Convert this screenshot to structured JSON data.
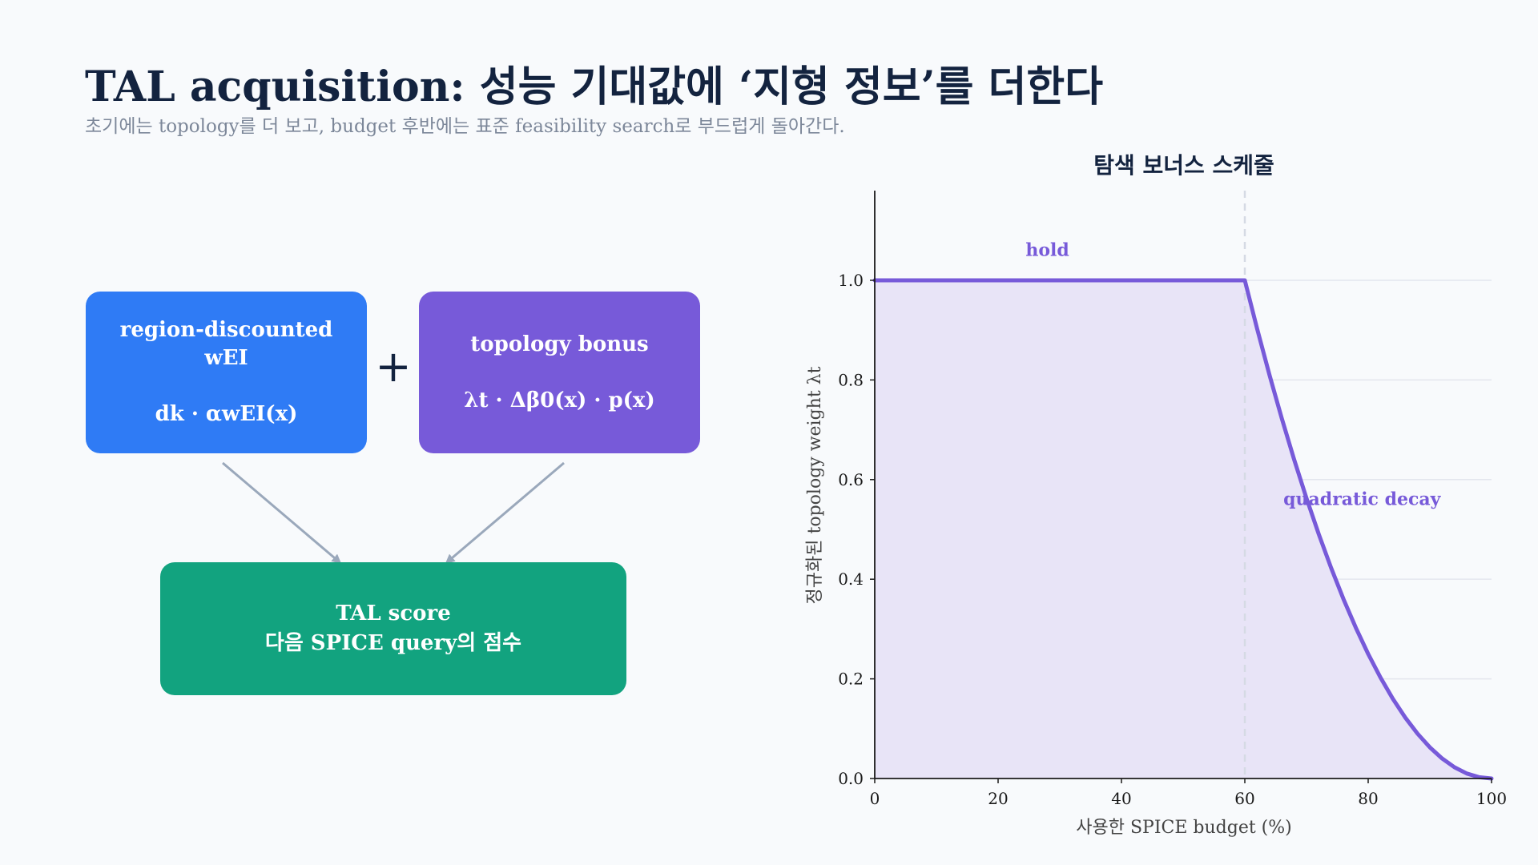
{
  "header": {
    "title": "TAL acquisition: 성능 기대값에 ‘지형 정보’를 더한다",
    "subtitle": "초기에는 topology를 더 보고, budget 후반에는 표준 feasibility search로 부드럽게 돌아간다."
  },
  "diagram": {
    "box_left": {
      "line1": "region-discounted",
      "line2": "wEI",
      "formula": "dk · αwEI(x)"
    },
    "operator": "+",
    "box_right": {
      "line1": "topology bonus",
      "formula": "λt · Δβ0(x) · p(x)"
    },
    "box_result": {
      "line1": "TAL score",
      "line2": "다음 SPICE query의 점수"
    }
  },
  "colors": {
    "blue": "#2f7bf5",
    "purple": "#775ad9",
    "green": "#12a37f",
    "arrow": "#9aa8bb",
    "fill": "#e8e4f7"
  },
  "chart_data": {
    "type": "line",
    "title": "탐색 보너스 스케줄",
    "xlabel": "사용한 SPICE budget (%)",
    "ylabel": "정규화된 topology weight λt",
    "xlim": [
      0,
      100
    ],
    "ylim": [
      0,
      1.18
    ],
    "xticks": [
      0,
      20,
      40,
      60,
      80,
      100
    ],
    "yticks": [
      0.0,
      0.2,
      0.4,
      0.6,
      0.8,
      1.0
    ],
    "ytick_labels": [
      "0.0",
      "0.2",
      "0.4",
      "0.6",
      "0.8",
      "1.0"
    ],
    "grid": "horizontal",
    "filled_area": true,
    "vertical_marker_x": 60,
    "series": [
      {
        "x": [
          0,
          60,
          62,
          64,
          66,
          68,
          70,
          72,
          74,
          76,
          78,
          80,
          82,
          84,
          86,
          88,
          90,
          92,
          94,
          96,
          98,
          100
        ],
        "y": [
          1.0,
          1.0,
          0.9025,
          0.81,
          0.7225,
          0.64,
          0.5625,
          0.49,
          0.4225,
          0.36,
          0.3025,
          0.25,
          0.2025,
          0.16,
          0.1225,
          0.09,
          0.0625,
          0.04,
          0.0225,
          0.01,
          0.0025,
          0.0
        ]
      }
    ],
    "annotations": [
      {
        "text": "hold",
        "x": 28,
        "y": 1.06
      },
      {
        "text": "quadratic decay",
        "x": 79,
        "y": 0.56
      }
    ]
  }
}
